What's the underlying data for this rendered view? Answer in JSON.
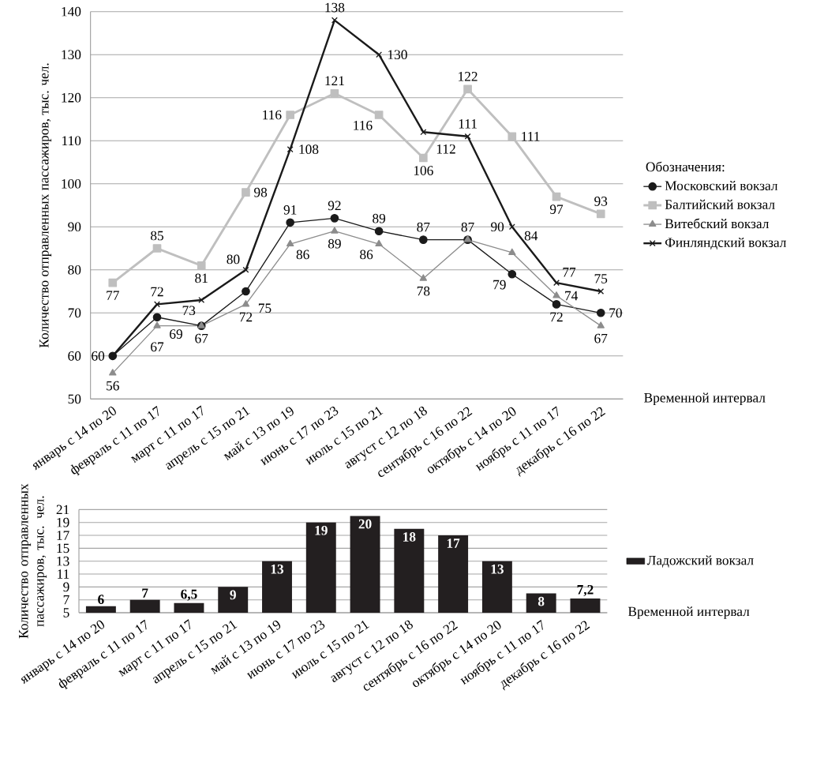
{
  "chart_data": [
    {
      "type": "line",
      "xlabel": "Временной интервал",
      "ylabel": "Количество отправленных пассажиров, тыс. чел.",
      "legend_title": "Обозначения:",
      "legend": "right",
      "grid": "y",
      "ylim": [
        50,
        140
      ],
      "yticks": [
        50,
        60,
        70,
        80,
        90,
        100,
        110,
        120,
        130,
        140
      ],
      "categories": [
        "январь с 14 по 20",
        "февраль с 11 по 17",
        "март с 11 по 17",
        "апрель с 15 по 21",
        "май с 13 по 19",
        "июнь с 17 по 23",
        "июль с 15 по 21",
        "август с 12 по 18",
        "сентябрь с 16 по 22",
        "октябрь с 14 по 20",
        "ноябрь с 11 по 17",
        "декабрь с 16 по 22"
      ],
      "series": [
        {
          "name": "Московский вокзал",
          "color": "#1a1a1a",
          "marker": "circle",
          "values": [
            60,
            69,
            67,
            75,
            91,
            92,
            89,
            87,
            87,
            79,
            72,
            70
          ],
          "value_labels": [
            null,
            "69",
            "67",
            "75",
            "91",
            "92",
            "89",
            "87",
            "87",
            "79",
            "72",
            "70"
          ]
        },
        {
          "name": "Балтийский вокзал",
          "color": "#bfbfbf",
          "marker": "square",
          "values": [
            77,
            85,
            81,
            98,
            116,
            121,
            116,
            106,
            122,
            111,
            97,
            93
          ],
          "value_labels": [
            "77",
            "85",
            "81",
            "98",
            "116",
            "121",
            "116",
            "106",
            "122",
            "111",
            "97",
            "93"
          ]
        },
        {
          "name": "Витебский вокзал",
          "color": "#8c8c8c",
          "marker": "triangle",
          "values": [
            56,
            67,
            67,
            72,
            86,
            89,
            86,
            78,
            87,
            84,
            74,
            67
          ],
          "value_labels": [
            "56",
            "67",
            null,
            "72",
            "86",
            "89",
            "86",
            "78",
            null,
            "84",
            "74",
            "67"
          ]
        },
        {
          "name": "Финляндский вокзал",
          "color": "#1a1a1a",
          "marker": "cross",
          "values": [
            60,
            72,
            73,
            80,
            108,
            138,
            130,
            112,
            111,
            90,
            77,
            75
          ],
          "value_labels": [
            "60",
            "72",
            "73",
            "80",
            "108",
            "138",
            "130",
            "112",
            "111",
            "90",
            "77",
            "75"
          ]
        }
      ]
    },
    {
      "type": "bar",
      "xlabel": "Временной интервал",
      "ylabel": "Количество отправленных пассажиров, тыс. чел.",
      "legend": "right",
      "grid": "y",
      "ylim": [
        5,
        21
      ],
      "yticks": [
        5,
        7,
        9,
        11,
        13,
        15,
        17,
        19,
        21
      ],
      "categories": [
        "январь с 14 по 20",
        "февраль с 11 по 17",
        "март с 11 по 17",
        "апрель с 15 по 21",
        "май с 13 по 19",
        "июнь с 17 по 23",
        "июль с 15 по 21",
        "август с 12 по 18",
        "сентябрь с 16 по 22",
        "октябрь с 14 по 20",
        "ноябрь с 11 по 17",
        "декабрь с 16 по 22"
      ],
      "series": [
        {
          "name": "Ладожский вокзал",
          "color": "#231f20",
          "values": [
            6,
            7,
            6.5,
            9,
            13,
            19,
            20,
            18,
            17,
            13,
            8,
            7.2
          ],
          "value_labels": [
            "6",
            "7",
            "6,5",
            "9",
            "13",
            "19",
            "20",
            "18",
            "17",
            "13",
            "8",
            "7,2"
          ]
        }
      ]
    }
  ]
}
